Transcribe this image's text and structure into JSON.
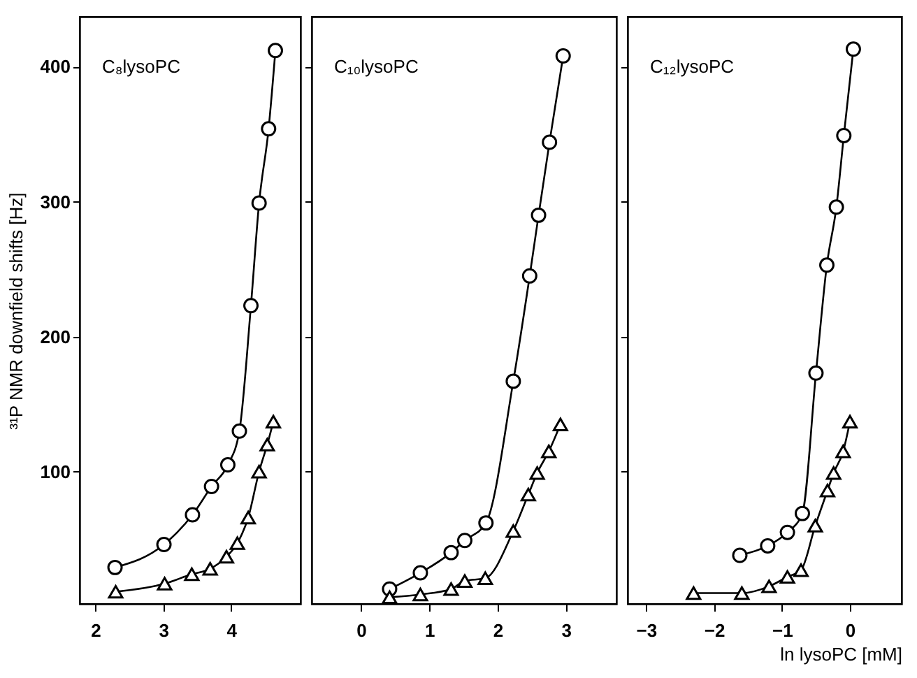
{
  "chart_data": [
    {
      "type": "line",
      "title": "C₈lysoPC",
      "ylabel": "³¹P NMR downfield shifts [Hz]",
      "xlim": [
        1.77,
        5.02
      ],
      "xticks": [
        2,
        3,
        4
      ],
      "ylim": [
        2,
        437
      ],
      "yticks": [
        100,
        200,
        300,
        400
      ],
      "grid": false,
      "line_style": "solid",
      "series": [
        {
          "color": "#000000",
          "marker": "circle",
          "x": [
            2.29,
            3.01,
            3.43,
            3.71,
            3.95,
            4.12,
            4.29,
            4.41,
            4.55,
            4.65
          ],
          "values": [
            29,
            46,
            68,
            89,
            105,
            130,
            223,
            299,
            354,
            412
          ]
        },
        {
          "color": "#000000",
          "marker": "triangle",
          "x": [
            2.3,
            3.02,
            3.42,
            3.69,
            3.93,
            4.09,
            4.25,
            4.41,
            4.53,
            4.62
          ],
          "values": [
            11,
            17,
            24,
            28,
            37,
            47,
            66,
            100,
            120,
            137
          ]
        }
      ]
    },
    {
      "type": "line",
      "title": "C₁₀lysoPC",
      "xlim": [
        -0.72,
        3.74
      ],
      "xticks": [
        0,
        1,
        2,
        3
      ],
      "ylim": [
        2,
        437
      ],
      "yticks": [
        100,
        200,
        300,
        400
      ],
      "tick_labels": "x",
      "grid": false,
      "line_style": "solid",
      "series": [
        {
          "color": "#000000",
          "marker": "circle",
          "x": [
            0.42,
            0.87,
            1.32,
            1.52,
            1.83,
            2.23,
            2.47,
            2.6,
            2.76,
            2.96
          ],
          "values": [
            13,
            25,
            40,
            49,
            62,
            167,
            245,
            290,
            344,
            408
          ]
        },
        {
          "color": "#000000",
          "marker": "triangle",
          "x": [
            0.42,
            0.87,
            1.32,
            1.52,
            1.82,
            2.23,
            2.45,
            2.58,
            2.75,
            2.92
          ],
          "values": [
            7,
            9,
            13,
            19,
            21,
            56,
            83,
            99,
            115,
            135
          ]
        }
      ]
    },
    {
      "type": "line",
      "title": "C₁₂lysoPC",
      "xlabel": "ln lysoPC [mM]",
      "xlim": [
        -3.27,
        0.76
      ],
      "xticks": [
        -3,
        -2,
        -1,
        0
      ],
      "ylim": [
        2,
        437
      ],
      "yticks": [
        100,
        200,
        300,
        400
      ],
      "tick_labels": "x",
      "grid": false,
      "line_style": "solid",
      "series": [
        {
          "color": "#000000",
          "marker": "circle",
          "x": [
            -1.62,
            -1.21,
            -0.92,
            -0.7,
            -0.5,
            -0.34,
            -0.2,
            -0.09,
            0.05
          ],
          "values": [
            38,
            45,
            55,
            69,
            173,
            253,
            296,
            349,
            413
          ]
        },
        {
          "color": "#000000",
          "marker": "triangle",
          "x": [
            -2.3,
            -1.59,
            -1.19,
            -0.92,
            -0.72,
            -0.51,
            -0.33,
            -0.24,
            -0.1,
            0.0
          ],
          "values": [
            10,
            10,
            15,
            22,
            27,
            60,
            86,
            99,
            115,
            137
          ]
        }
      ]
    }
  ]
}
